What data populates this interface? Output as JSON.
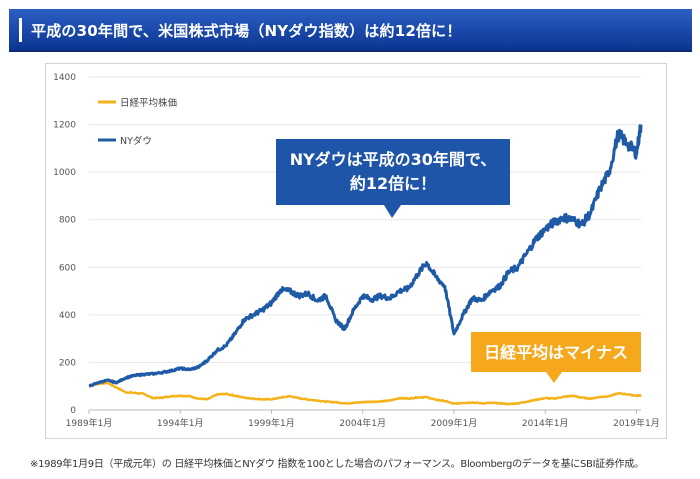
{
  "header": {
    "title": "平成の30年間で、米国株式市場（NYダウ指数）は約12倍に！"
  },
  "chart_data": {
    "type": "line",
    "title": "",
    "xlabel": "",
    "ylabel": "",
    "ylim": [
      0,
      1400
    ],
    "yticks": [
      0,
      200,
      400,
      600,
      800,
      1000,
      1200,
      1400
    ],
    "xlim": [
      1989.0,
      2019.25
    ],
    "xticks": [
      {
        "x": 1989.0,
        "label": "1989年1月"
      },
      {
        "x": 1994.0,
        "label": "1994年1月"
      },
      {
        "x": 1999.0,
        "label": "1999年1月"
      },
      {
        "x": 2004.0,
        "label": "2004年1月"
      },
      {
        "x": 2009.0,
        "label": "2009年1月"
      },
      {
        "x": 2014.0,
        "label": "2014年1月"
      },
      {
        "x": 2019.0,
        "label": "2019年1月"
      }
    ],
    "grid": "horizontal",
    "legend_position": "top-left",
    "colors": {
      "nikkei": "#f5b21b",
      "nydow": "#1f5aa6",
      "grid": "#e6e6e6",
      "axis": "#bbbbbb",
      "tick_text": "#555555"
    },
    "series": [
      {
        "name": "日経平均株価",
        "color": "#f5b21b",
        "x": [
          1989.0,
          1989.5,
          1990.0,
          1990.5,
          1991.0,
          1991.5,
          1992.0,
          1992.5,
          1993.0,
          1993.5,
          1994.0,
          1994.5,
          1995.0,
          1995.5,
          1996.0,
          1996.5,
          1997.0,
          1997.5,
          1998.0,
          1998.5,
          1999.0,
          1999.5,
          2000.0,
          2000.5,
          2001.0,
          2001.5,
          2002.0,
          2002.5,
          2003.0,
          2003.5,
          2004.0,
          2004.5,
          2005.0,
          2005.5,
          2006.0,
          2006.5,
          2007.0,
          2007.5,
          2008.0,
          2008.5,
          2009.0,
          2009.5,
          2010.0,
          2010.5,
          2011.0,
          2011.5,
          2012.0,
          2012.5,
          2013.0,
          2013.5,
          2014.0,
          2014.5,
          2015.0,
          2015.5,
          2016.0,
          2016.5,
          2017.0,
          2017.5,
          2018.0,
          2018.5,
          2019.0,
          2019.25
        ],
        "values": [
          100,
          110,
          115,
          95,
          75,
          72,
          68,
          50,
          52,
          58,
          60,
          58,
          48,
          45,
          65,
          68,
          60,
          52,
          48,
          45,
          45,
          52,
          58,
          50,
          44,
          40,
          35,
          33,
          28,
          30,
          33,
          35,
          36,
          40,
          50,
          48,
          53,
          54,
          43,
          38,
          26,
          30,
          32,
          28,
          30,
          28,
          25,
          28,
          35,
          43,
          50,
          48,
          55,
          60,
          52,
          48,
          55,
          58,
          70,
          66,
          60,
          62
        ]
      },
      {
        "name": "NYダウ",
        "color": "#1f5aa6",
        "x": [
          1989.0,
          1989.5,
          1990.0,
          1990.5,
          1991.0,
          1991.5,
          1992.0,
          1992.5,
          1993.0,
          1993.5,
          1994.0,
          1994.5,
          1995.0,
          1995.5,
          1996.0,
          1996.5,
          1997.0,
          1997.5,
          1998.0,
          1998.5,
          1999.0,
          1999.5,
          2000.0,
          2000.5,
          2001.0,
          2001.5,
          2002.0,
          2002.5,
          2003.0,
          2003.5,
          2004.0,
          2004.5,
          2005.0,
          2005.5,
          2006.0,
          2006.5,
          2007.0,
          2007.5,
          2008.0,
          2008.5,
          2009.0,
          2009.5,
          2010.0,
          2010.5,
          2011.0,
          2011.5,
          2012.0,
          2012.5,
          2013.0,
          2013.5,
          2014.0,
          2014.5,
          2015.0,
          2015.5,
          2016.0,
          2016.5,
          2017.0,
          2017.5,
          2018.0,
          2018.5,
          2019.0,
          2019.25
        ],
        "values": [
          100,
          115,
          125,
          115,
          135,
          145,
          150,
          152,
          158,
          165,
          175,
          170,
          180,
          210,
          250,
          270,
          320,
          380,
          400,
          420,
          450,
          505,
          500,
          480,
          490,
          460,
          480,
          380,
          340,
          420,
          480,
          465,
          480,
          470,
          500,
          510,
          570,
          620,
          560,
          520,
          320,
          400,
          470,
          460,
          500,
          520,
          580,
          600,
          660,
          720,
          760,
          790,
          810,
          800,
          780,
          830,
          930,
          1000,
          1160,
          1120,
          1080,
          1200
        ]
      }
    ],
    "annotations": [
      {
        "text": "NYダウは平成の30年間で、約12倍に！",
        "lines": [
          "NYダウは平成の30年間で、",
          "約12倍に！"
        ],
        "color": "#1e55a8"
      },
      {
        "text": "日経平均はマイナス",
        "color": "#f5a81c"
      }
    ]
  },
  "footnote": "※1989年1月9日（平成元年）の 日経平均株価とNYダウ 指数を100とした場合のパフォーマンス。Bloombergのデータを基にSBI証券作成。"
}
